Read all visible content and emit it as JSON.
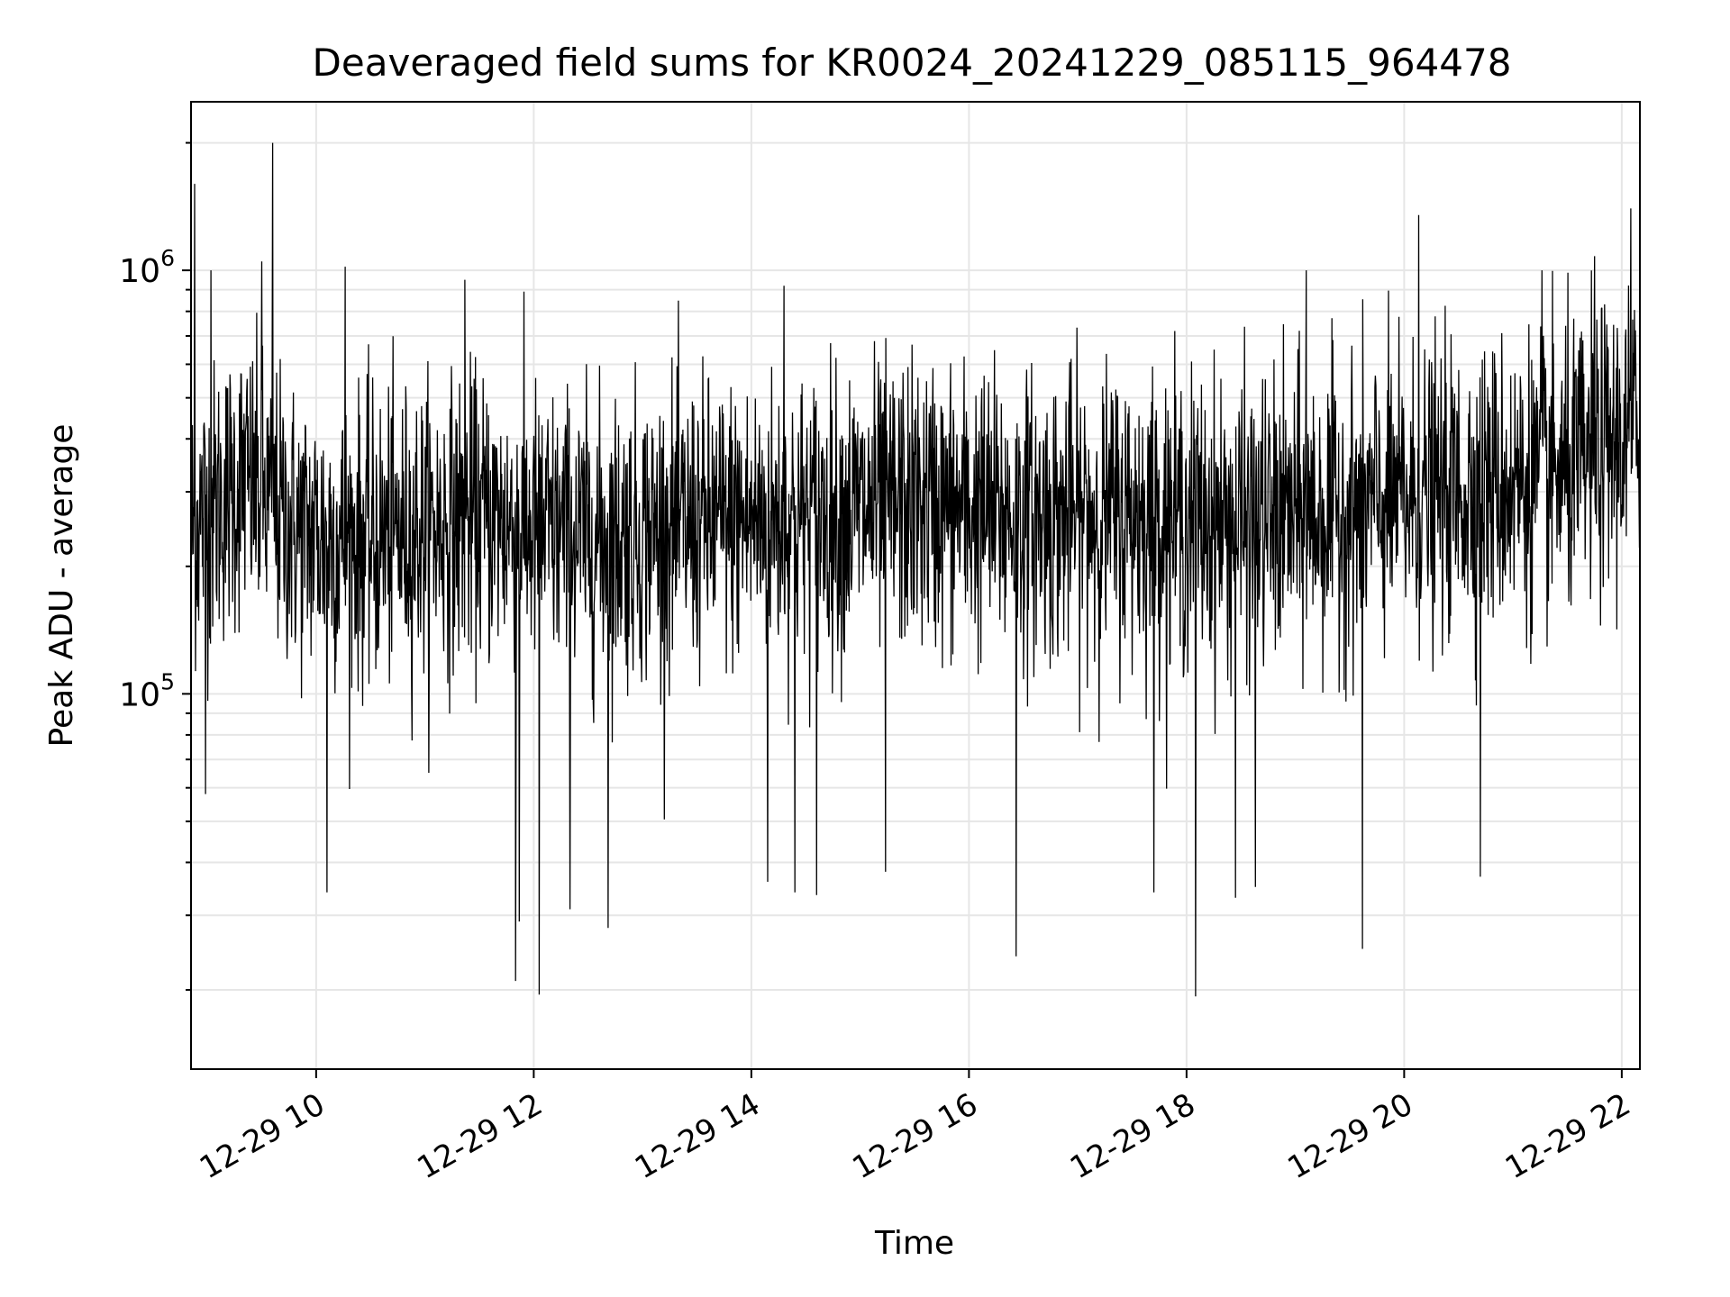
{
  "chart_data": {
    "type": "line",
    "title": "Deaveraged field sums for KR0024_20241229_085115_964478",
    "xlabel": "Time",
    "ylabel": "Peak ADU - average",
    "x_range": [
      "2024-12-29 08:51",
      "2024-12-29 22:10"
    ],
    "x_ticks": [
      {
        "label": "12-29 10",
        "value": "2024-12-29 10:00"
      },
      {
        "label": "12-29 12",
        "value": "2024-12-29 12:00"
      },
      {
        "label": "12-29 14",
        "value": "2024-12-29 14:00"
      },
      {
        "label": "12-29 16",
        "value": "2024-12-29 16:00"
      },
      {
        "label": "12-29 18",
        "value": "2024-12-29 18:00"
      },
      {
        "label": "12-29 20",
        "value": "2024-12-29 20:00"
      },
      {
        "label": "12-29 22",
        "value": "2024-12-29 22:00"
      }
    ],
    "y_scale": "log",
    "y_range": [
      13000,
      2500000
    ],
    "y_ticks": [
      {
        "base": "10",
        "exp": "5",
        "value": 100000
      },
      {
        "base": "10",
        "exp": "6",
        "value": 1000000
      }
    ],
    "grid": true,
    "line_color": "#000000",
    "series": [
      {
        "trend": [
          [
            "2024-12-29 08:52",
            250000
          ],
          [
            "2024-12-29 09:20",
            320000
          ],
          [
            "2024-12-29 09:50",
            240000
          ],
          [
            "2024-12-29 10:30",
            230000
          ],
          [
            "2024-12-29 11:30",
            260000
          ],
          [
            "2024-12-29 12:30",
            230000
          ],
          [
            "2024-12-29 13:30",
            250000
          ],
          [
            "2024-12-29 14:30",
            260000
          ],
          [
            "2024-12-29 15:30",
            280000
          ],
          [
            "2024-12-29 16:30",
            260000
          ],
          [
            "2024-12-29 17:30",
            265000
          ],
          [
            "2024-12-29 18:30",
            250000
          ],
          [
            "2024-12-29 19:30",
            270000
          ],
          [
            "2024-12-29 20:30",
            300000
          ],
          [
            "2024-12-29 21:30",
            330000
          ],
          [
            "2024-12-29 22:09",
            420000
          ]
        ],
        "noise_sigma_log10": 0.17,
        "sample_count": 3200,
        "spikes_high": [
          [
            "2024-12-29 08:53",
            1600000
          ],
          [
            "2024-12-29 09:02",
            1000000
          ],
          [
            "2024-12-29 09:30",
            1050000
          ],
          [
            "2024-12-29 09:36",
            2000000
          ],
          [
            "2024-12-29 10:16",
            1020000
          ],
          [
            "2024-12-29 11:22",
            950000
          ],
          [
            "2024-12-29 14:18",
            920000
          ],
          [
            "2024-12-29 19:06",
            1000000
          ],
          [
            "2024-12-29 20:08",
            1350000
          ],
          [
            "2024-12-29 21:16",
            1000000
          ],
          [
            "2024-12-29 21:45",
            1080000
          ],
          [
            "2024-12-29 22:05",
            1400000
          ],
          [
            "2024-12-29 22:10",
            1650000
          ]
        ],
        "spikes_low": [
          [
            "2024-12-29 08:59",
            58000
          ],
          [
            "2024-12-29 10:06",
            34000
          ],
          [
            "2024-12-29 11:50",
            21000
          ],
          [
            "2024-12-29 11:52",
            29000
          ],
          [
            "2024-12-29 12:03",
            19500
          ],
          [
            "2024-12-29 12:20",
            31000
          ],
          [
            "2024-12-29 12:41",
            28000
          ],
          [
            "2024-12-29 14:09",
            36000
          ],
          [
            "2024-12-29 14:24",
            34000
          ],
          [
            "2024-12-29 14:36",
            33500
          ],
          [
            "2024-12-29 15:14",
            38000
          ],
          [
            "2024-12-29 16:26",
            24000
          ],
          [
            "2024-12-29 17:42",
            34000
          ],
          [
            "2024-12-29 18:05",
            19300
          ],
          [
            "2024-12-29 18:27",
            33000
          ],
          [
            "2024-12-29 18:38",
            35000
          ],
          [
            "2024-12-29 19:37",
            25000
          ],
          [
            "2024-12-29 20:42",
            37000
          ]
        ]
      }
    ]
  }
}
